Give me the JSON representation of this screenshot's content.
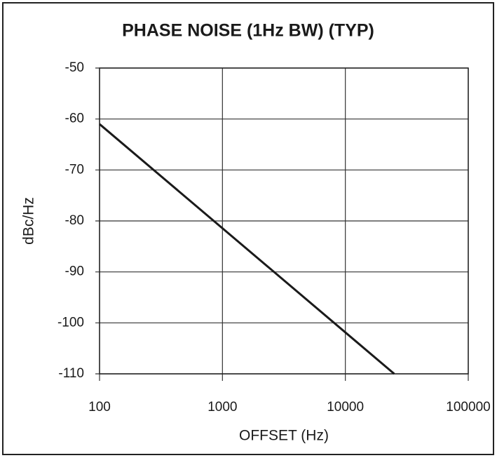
{
  "chart_data": {
    "type": "line",
    "title": "PHASE NOISE (1Hz BW) (TYP)",
    "x_label": "OFFSET (Hz)",
    "y_label": "dBc/Hz",
    "x": [
      100,
      25000
    ],
    "series": [
      {
        "color": "#1a1a1a",
        "values": [
          -61,
          -110
        ]
      }
    ],
    "xlim": [
      100,
      100000
    ],
    "xticks": [
      100,
      1000,
      10000,
      100000
    ],
    "xscale": "log",
    "ylim": [
      -110,
      -50
    ],
    "yticks": [
      -50,
      -60,
      -70,
      -80,
      -90,
      -100,
      -110
    ],
    "grid": true
  }
}
